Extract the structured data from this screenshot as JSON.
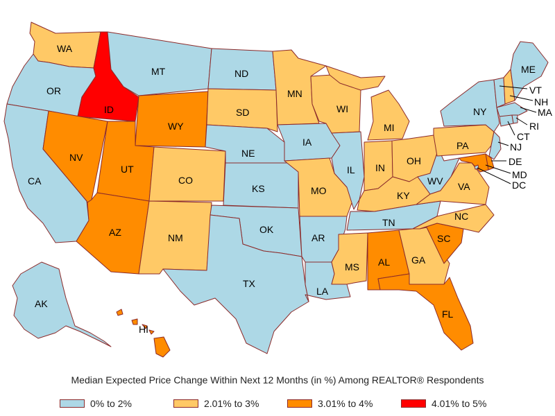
{
  "colors": {
    "c1": "#add8e6",
    "c2": "#ffc966",
    "c3": "#ff8c00",
    "c4": "#ff0000",
    "border": "#8b2a2a"
  },
  "caption": "Median Expected Price Change Within Next 12 Months (in %) Among REALTOR® Respondents",
  "legend": [
    {
      "label": "0% to 2%",
      "category": "c1"
    },
    {
      "label": "2.01% to 3%",
      "category": "c2"
    },
    {
      "label": "3.01% to 4%",
      "category": "c3"
    },
    {
      "label": "4.01% to 5%",
      "category": "c4"
    }
  ],
  "states": {
    "WA": "c2",
    "OR": "c1",
    "CA": "c1",
    "ID": "c4",
    "NV": "c3",
    "MT": "c1",
    "WY": "c3",
    "UT": "c3",
    "AZ": "c3",
    "CO": "c2",
    "NM": "c2",
    "ND": "c1",
    "SD": "c2",
    "NE": "c1",
    "KS": "c1",
    "OK": "c1",
    "TX": "c1",
    "MN": "c2",
    "IA": "c1",
    "MO": "c2",
    "AR": "c1",
    "LA": "c1",
    "WI": "c2",
    "IL": "c1",
    "MS": "c2",
    "MI": "c2",
    "IN": "c2",
    "KY": "c2",
    "TN": "c1",
    "AL": "c3",
    "OH": "c2",
    "WV": "c1",
    "GA": "c2",
    "FL": "c3",
    "SC": "c3",
    "NC": "c2",
    "VA": "c2",
    "PA": "c2",
    "NY": "c1",
    "NJ": "c1",
    "DE": "c3",
    "MD": "c3",
    "DC": "c1",
    "VT": "c1",
    "NH": "c2",
    "ME": "c1",
    "MA": "c1",
    "RI": "c1",
    "CT": "c1",
    "AK": "c1",
    "HI": "c3"
  }
}
